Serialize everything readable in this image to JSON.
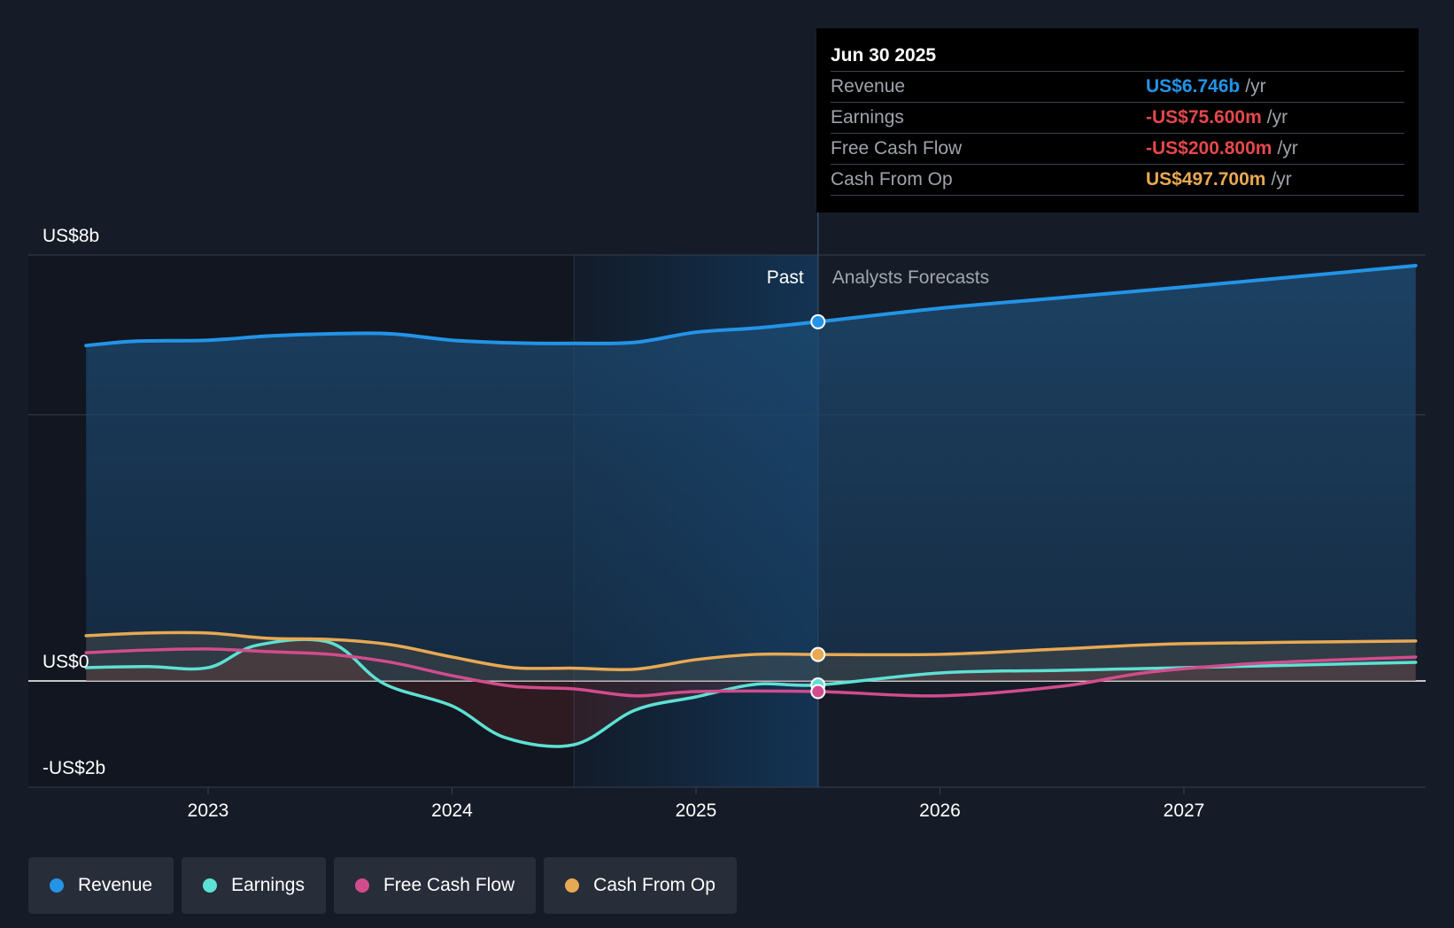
{
  "chart_data": {
    "type": "line",
    "x_domain": [
      2022.5,
      2027.95
    ],
    "y_domain": [
      -2,
      8
    ],
    "ticks_x": [
      {
        "value": 2023,
        "label": "2023"
      },
      {
        "value": 2024,
        "label": "2024"
      },
      {
        "value": 2025,
        "label": "2025"
      },
      {
        "value": 2026,
        "label": "2026"
      },
      {
        "value": 2027,
        "label": "2027"
      }
    ],
    "y_labels": [
      {
        "value": 8,
        "label": "US$8b"
      },
      {
        "value": 0,
        "label": "US$0"
      },
      {
        "value": -2,
        "label": "-US$2b"
      }
    ],
    "gridlines_y": [
      8,
      5,
      0,
      -2
    ],
    "past_label": "Past",
    "forecast_label": "Analysts Forecasts",
    "past_end_x": 2025.5,
    "highlight_start_x": 2024.5,
    "series": [
      {
        "name": "Revenue",
        "color": "#2394e7",
        "fill": true,
        "points": [
          [
            2022.5,
            6.3
          ],
          [
            2022.7,
            6.38
          ],
          [
            2023.0,
            6.4
          ],
          [
            2023.25,
            6.48
          ],
          [
            2023.5,
            6.52
          ],
          [
            2023.75,
            6.52
          ],
          [
            2024.0,
            6.4
          ],
          [
            2024.25,
            6.35
          ],
          [
            2024.5,
            6.34
          ],
          [
            2024.75,
            6.36
          ],
          [
            2025.0,
            6.55
          ],
          [
            2025.25,
            6.63
          ],
          [
            2025.5,
            6.746
          ],
          [
            2026.0,
            7.0
          ],
          [
            2026.5,
            7.2
          ],
          [
            2027.0,
            7.4
          ],
          [
            2027.95,
            7.8
          ]
        ]
      },
      {
        "name": "Earnings",
        "color": "#5de1d4",
        "fill": false,
        "points": [
          [
            2022.5,
            0.25
          ],
          [
            2022.75,
            0.27
          ],
          [
            2023.0,
            0.25
          ],
          [
            2023.2,
            0.67
          ],
          [
            2023.5,
            0.72
          ],
          [
            2023.72,
            -0.05
          ],
          [
            2024.0,
            -0.47
          ],
          [
            2024.22,
            -1.07
          ],
          [
            2024.5,
            -1.2
          ],
          [
            2024.75,
            -0.55
          ],
          [
            2025.0,
            -0.3
          ],
          [
            2025.25,
            -0.06
          ],
          [
            2025.5,
            -0.0756
          ],
          [
            2026.0,
            0.15
          ],
          [
            2026.5,
            0.2
          ],
          [
            2027.0,
            0.25
          ],
          [
            2027.95,
            0.35
          ]
        ]
      },
      {
        "name": "Free Cash Flow",
        "color": "#d24c8d",
        "fill": false,
        "points": [
          [
            2022.5,
            0.53
          ],
          [
            2022.75,
            0.58
          ],
          [
            2023.0,
            0.6
          ],
          [
            2023.25,
            0.55
          ],
          [
            2023.5,
            0.5
          ],
          [
            2023.75,
            0.35
          ],
          [
            2024.0,
            0.1
          ],
          [
            2024.25,
            -0.1
          ],
          [
            2024.5,
            -0.15
          ],
          [
            2024.75,
            -0.28
          ],
          [
            2025.0,
            -0.2
          ],
          [
            2025.5,
            -0.2008
          ],
          [
            2026.0,
            -0.28
          ],
          [
            2026.5,
            -0.1
          ],
          [
            2026.85,
            0.16
          ],
          [
            2027.3,
            0.33
          ],
          [
            2027.95,
            0.45
          ]
        ]
      },
      {
        "name": "Cash From Op",
        "color": "#e8a953",
        "fill": true,
        "points": [
          [
            2022.5,
            0.85
          ],
          [
            2022.75,
            0.9
          ],
          [
            2023.0,
            0.9
          ],
          [
            2023.25,
            0.8
          ],
          [
            2023.5,
            0.78
          ],
          [
            2023.75,
            0.68
          ],
          [
            2024.0,
            0.45
          ],
          [
            2024.25,
            0.25
          ],
          [
            2024.5,
            0.24
          ],
          [
            2024.75,
            0.22
          ],
          [
            2025.0,
            0.4
          ],
          [
            2025.25,
            0.5
          ],
          [
            2025.5,
            0.4977
          ],
          [
            2026.0,
            0.5
          ],
          [
            2026.5,
            0.6
          ],
          [
            2027.0,
            0.7
          ],
          [
            2027.95,
            0.75
          ]
        ]
      }
    ],
    "tooltip": {
      "date": "Jun 30 2025",
      "rows": [
        {
          "label": "Revenue",
          "value": "US$6.746b",
          "unit": "/yr",
          "color": "#2394e7"
        },
        {
          "label": "Earnings",
          "value": "-US$75.600m",
          "unit": "/yr",
          "color": "#e5484d"
        },
        {
          "label": "Free Cash Flow",
          "value": "-US$200.800m",
          "unit": "/yr",
          "color": "#e5484d"
        },
        {
          "label": "Cash From Op",
          "value": "US$497.700m",
          "unit": "/yr",
          "color": "#e8a953"
        }
      ]
    },
    "legend": [
      {
        "label": "Revenue",
        "color": "#2394e7"
      },
      {
        "label": "Earnings",
        "color": "#5de1d4"
      },
      {
        "label": "Free Cash Flow",
        "color": "#d24c8d"
      },
      {
        "label": "Cash From Op",
        "color": "#e8a953"
      }
    ]
  }
}
